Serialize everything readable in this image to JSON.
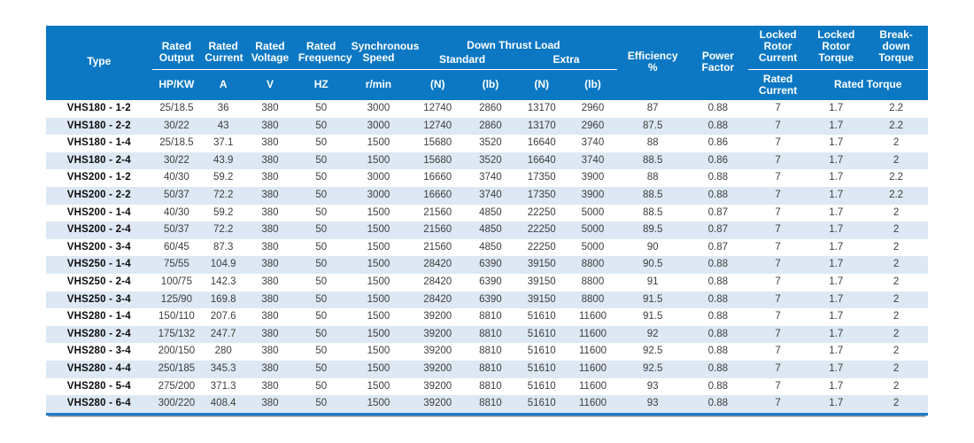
{
  "header": {
    "type": "Type",
    "rated_output": "Rated Output",
    "rated_current": "Rated Current",
    "rated_voltage": "Rated Voltage",
    "rated_frequency": "Rated Frequency",
    "synchronous_speed": "Synchronous Speed",
    "down_thrust_load": "Down Thrust Load",
    "standard": "Standard",
    "extra": "Extra",
    "efficiency": "Efficiency %",
    "power_factor": "Power Factor",
    "locked_rotor_current": "Locked Rotor Current",
    "locked_rotor_torque": "Locked Rotor Torque",
    "breakdown_torque": "Break-down Torque",
    "units": {
      "output": "HP/KW",
      "current": "A",
      "voltage": "V",
      "frequency": "HZ",
      "speed": "r/min",
      "std_n": "(N)",
      "std_lb": "(lb)",
      "extra_n": "(N)",
      "extra_lb": "(lb)",
      "rated_current": "Rated Current",
      "rated_torque": "Rated Torque"
    }
  },
  "colors": {
    "header_bg": "#0c78c4",
    "row_band": "#dde8f4",
    "bottom_rule": "#1e7ac4",
    "body_text": "#3d3d3d"
  },
  "table": {
    "rows": [
      [
        "VHS180 - 1-2",
        "25/18.5",
        "36",
        "380",
        "50",
        "3000",
        "12740",
        "2860",
        "13170",
        "2960",
        "87",
        "0.88",
        "7",
        "1.7",
        "2.2"
      ],
      [
        "VHS180 - 2-2",
        "30/22",
        "43",
        "380",
        "50",
        "3000",
        "12740",
        "2860",
        "13170",
        "2960",
        "87.5",
        "0.88",
        "7",
        "1.7",
        "2.2"
      ],
      [
        "VHS180 - 1-4",
        "25/18.5",
        "37.1",
        "380",
        "50",
        "1500",
        "15680",
        "3520",
        "16640",
        "3740",
        "88",
        "0.86",
        "7",
        "1.7",
        "2"
      ],
      [
        "VHS180 - 2-4",
        "30/22",
        "43.9",
        "380",
        "50",
        "1500",
        "15680",
        "3520",
        "16640",
        "3740",
        "88.5",
        "0.86",
        "7",
        "1.7",
        "2"
      ],
      [
        "VHS200 - 1-2",
        "40/30",
        "59.2",
        "380",
        "50",
        "3000",
        "16660",
        "3740",
        "17350",
        "3900",
        "88",
        "0.88",
        "7",
        "1.7",
        "2.2"
      ],
      [
        "VHS200 - 2-2",
        "50/37",
        "72.2",
        "380",
        "50",
        "3000",
        "16660",
        "3740",
        "17350",
        "3900",
        "88.5",
        "0.88",
        "7",
        "1.7",
        "2.2"
      ],
      [
        "VHS200 - 1-4",
        "40/30",
        "59.2",
        "380",
        "50",
        "1500",
        "21560",
        "4850",
        "22250",
        "5000",
        "88.5",
        "0.87",
        "7",
        "1.7",
        "2"
      ],
      [
        "VHS200 - 2-4",
        "50/37",
        "72.2",
        "380",
        "50",
        "1500",
        "21560",
        "4850",
        "22250",
        "5000",
        "89.5",
        "0.87",
        "7",
        "1.7",
        "2"
      ],
      [
        "VHS200 - 3-4",
        "60/45",
        "87.3",
        "380",
        "50",
        "1500",
        "21560",
        "4850",
        "22250",
        "5000",
        "90",
        "0.87",
        "7",
        "1.7",
        "2"
      ],
      [
        "VHS250 - 1-4",
        "75/55",
        "104.9",
        "380",
        "50",
        "1500",
        "28420",
        "6390",
        "39150",
        "8800",
        "90.5",
        "0.88",
        "7",
        "1.7",
        "2"
      ],
      [
        "VHS250 - 2-4",
        "100/75",
        "142.3",
        "380",
        "50",
        "1500",
        "28420",
        "6390",
        "39150",
        "8800",
        "91",
        "0.88",
        "7",
        "1.7",
        "2"
      ],
      [
        "VHS250 - 3-4",
        "125/90",
        "169.8",
        "380",
        "50",
        "1500",
        "28420",
        "6390",
        "39150",
        "8800",
        "91.5",
        "0.88",
        "7",
        "1.7",
        "2"
      ],
      [
        "VHS280 - 1-4",
        "150/110",
        "207.6",
        "380",
        "50",
        "1500",
        "39200",
        "8810",
        "51610",
        "11600",
        "91.5",
        "0.88",
        "7",
        "1.7",
        "2"
      ],
      [
        "VHS280 - 2-4",
        "175/132",
        "247.7",
        "380",
        "50",
        "1500",
        "39200",
        "8810",
        "51610",
        "11600",
        "92",
        "0.88",
        "7",
        "1.7",
        "2"
      ],
      [
        "VHS280 - 3-4",
        "200/150",
        "280",
        "380",
        "50",
        "1500",
        "39200",
        "8810",
        "51610",
        "11600",
        "92.5",
        "0.88",
        "7",
        "1.7",
        "2"
      ],
      [
        "VHS280 - 4-4",
        "250/185",
        "345.3",
        "380",
        "50",
        "1500",
        "39200",
        "8810",
        "51610",
        "11600",
        "92.5",
        "0.88",
        "7",
        "1.7",
        "2"
      ],
      [
        "VHS280 - 5-4",
        "275/200",
        "371.3",
        "380",
        "50",
        "1500",
        "39200",
        "8810",
        "51610",
        "11600",
        "93",
        "0.88",
        "7",
        "1.7",
        "2"
      ],
      [
        "VHS280 - 6-4",
        "300/220",
        "408.4",
        "380",
        "50",
        "1500",
        "39200",
        "8810",
        "51610",
        "11600",
        "93",
        "0.88",
        "7",
        "1.7",
        "2"
      ]
    ]
  }
}
